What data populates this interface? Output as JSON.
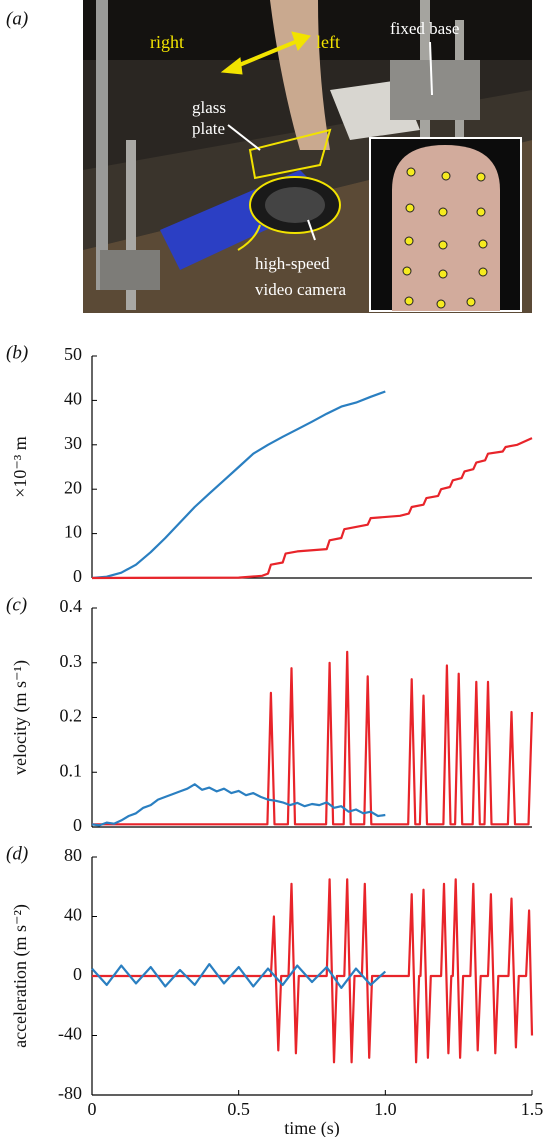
{
  "photo": {
    "label": "(a)",
    "right": "right",
    "left": "left",
    "fixed_base": "fixed base",
    "glass": "glass",
    "plate": "plate",
    "camera_1": "high-speed",
    "camera_2": "video camera"
  },
  "chart_data": [
    {
      "type": "line",
      "label": "(b)",
      "ylabel": "×10⁻³ m",
      "xlim": [
        0,
        1.5
      ],
      "ylim": [
        0,
        50
      ],
      "yticks": [
        0,
        10,
        20,
        30,
        40,
        50
      ],
      "series": [
        {
          "color": "#2a7fc1",
          "x": [
            0,
            0.05,
            0.1,
            0.15,
            0.2,
            0.25,
            0.3,
            0.35,
            0.4,
            0.45,
            0.5,
            0.55,
            0.6,
            0.65,
            0.7,
            0.75,
            0.8,
            0.85,
            0.9,
            0.95,
            1.0
          ],
          "values": [
            0,
            0.3,
            1.2,
            3,
            5.8,
            9,
            12.5,
            16,
            19,
            22,
            25,
            28,
            30,
            31.8,
            33.5,
            35.2,
            37,
            38.6,
            39.5,
            40.8,
            42
          ]
        },
        {
          "color": "#e8242a",
          "x": [
            0,
            0.5,
            0.58,
            0.6,
            0.61,
            0.65,
            0.66,
            0.7,
            0.8,
            0.81,
            0.85,
            0.86,
            0.9,
            0.94,
            0.95,
            1.05,
            1.08,
            1.09,
            1.13,
            1.14,
            1.18,
            1.19,
            1.22,
            1.23,
            1.26,
            1.27,
            1.3,
            1.31,
            1.34,
            1.35,
            1.4,
            1.41,
            1.45,
            1.5
          ],
          "values": [
            0,
            0.1,
            0.5,
            1,
            3,
            3.5,
            5.5,
            6,
            6.5,
            8.5,
            9,
            11,
            11.5,
            12,
            13.5,
            14,
            14.5,
            16,
            16.5,
            18,
            18.5,
            20,
            20.5,
            22,
            22.5,
            24,
            24.5,
            26,
            26.5,
            28,
            28.5,
            29.5,
            30,
            31.5
          ]
        }
      ]
    },
    {
      "type": "line",
      "label": "(c)",
      "ylabel": "velocity (m s⁻¹)",
      "xlim": [
        0,
        1.5
      ],
      "ylim": [
        0,
        0.4
      ],
      "yticks": [
        0,
        0.1,
        0.2,
        0.3,
        0.4
      ],
      "series": [
        {
          "color": "#e8242a",
          "x": [
            0,
            0.598,
            0.61,
            0.622,
            0.668,
            0.68,
            0.692,
            0.798,
            0.81,
            0.822,
            0.858,
            0.87,
            0.882,
            0.928,
            0.94,
            0.952,
            1.078,
            1.09,
            1.102,
            1.118,
            1.13,
            1.142,
            1.198,
            1.21,
            1.222,
            1.238,
            1.25,
            1.262,
            1.298,
            1.31,
            1.322,
            1.338,
            1.35,
            1.362,
            1.418,
            1.43,
            1.442,
            1.488,
            1.5
          ],
          "values": [
            0.005,
            0.005,
            0.245,
            0.005,
            0.005,
            0.29,
            0.005,
            0.005,
            0.3,
            0.005,
            0.005,
            0.32,
            0.005,
            0.005,
            0.275,
            0.005,
            0.005,
            0.27,
            0.005,
            0.005,
            0.24,
            0.005,
            0.005,
            0.295,
            0.005,
            0.005,
            0.28,
            0.005,
            0.005,
            0.265,
            0.005,
            0.005,
            0.265,
            0.005,
            0.005,
            0.21,
            0.005,
            0.005,
            0.21
          ]
        },
        {
          "color": "#2a7fc1",
          "x": [
            0,
            0.025,
            0.05,
            0.075,
            0.1,
            0.125,
            0.15,
            0.175,
            0.2,
            0.225,
            0.25,
            0.275,
            0.3,
            0.325,
            0.35,
            0.375,
            0.4,
            0.425,
            0.45,
            0.475,
            0.5,
            0.525,
            0.55,
            0.575,
            0.6,
            0.625,
            0.65,
            0.675,
            0.7,
            0.725,
            0.75,
            0.775,
            0.8,
            0.825,
            0.85,
            0.875,
            0.9,
            0.925,
            0.95,
            0.975,
            1
          ],
          "values": [
            0.005,
            0.003,
            0.008,
            0.006,
            0.012,
            0.02,
            0.025,
            0.035,
            0.04,
            0.05,
            0.055,
            0.06,
            0.065,
            0.07,
            0.078,
            0.068,
            0.072,
            0.065,
            0.07,
            0.062,
            0.066,
            0.058,
            0.062,
            0.055,
            0.05,
            0.048,
            0.045,
            0.04,
            0.044,
            0.038,
            0.042,
            0.04,
            0.045,
            0.035,
            0.038,
            0.028,
            0.032,
            0.025,
            0.028,
            0.02,
            0.022
          ]
        }
      ]
    },
    {
      "type": "line",
      "label": "(d)",
      "ylabel": "acceleration (m s⁻²)",
      "xlabel": "time (s)",
      "xlim": [
        0,
        1.5
      ],
      "ylim": [
        -80,
        80
      ],
      "yticks": [
        -80,
        -40,
        0,
        40,
        80
      ],
      "xticks": [
        0,
        0.5,
        {
          "value": 1,
          "label": "1.0"
        },
        1.5
      ],
      "series": [
        {
          "color": "#e8242a",
          "x": [
            0,
            0.6,
            0.61,
            0.62,
            0.635,
            0.645,
            0.67,
            0.68,
            0.695,
            0.705,
            0.8,
            0.81,
            0.825,
            0.835,
            0.86,
            0.87,
            0.885,
            0.895,
            0.92,
            0.93,
            0.945,
            0.955,
            1.08,
            1.09,
            1.105,
            1.115,
            1.12,
            1.13,
            1.145,
            1.155,
            1.19,
            1.2,
            1.215,
            1.225,
            1.23,
            1.24,
            1.255,
            1.265,
            1.29,
            1.3,
            1.315,
            1.325,
            1.35,
            1.36,
            1.375,
            1.385,
            1.42,
            1.43,
            1.445,
            1.455,
            1.48,
            1.49,
            1.5
          ],
          "values": [
            0,
            0,
            0,
            40,
            -50,
            0,
            0,
            62,
            -52,
            0,
            0,
            65,
            -58,
            0,
            0,
            65,
            -58,
            0,
            0,
            62,
            -55,
            0,
            0,
            55,
            -58,
            0,
            0,
            58,
            -55,
            0,
            0,
            62,
            -52,
            0,
            0,
            65,
            -55,
            0,
            0,
            62,
            -50,
            0,
            0,
            55,
            -52,
            0,
            0,
            52,
            -48,
            0,
            0,
            44,
            -40
          ]
        },
        {
          "color": "#2a7fc1",
          "x": [
            0,
            0.05,
            0.1,
            0.15,
            0.2,
            0.25,
            0.3,
            0.35,
            0.4,
            0.45,
            0.5,
            0.55,
            0.6,
            0.65,
            0.7,
            0.75,
            0.8,
            0.85,
            0.9,
            0.95,
            1.0
          ],
          "values": [
            5,
            -6,
            7,
            -5,
            6,
            -7,
            4,
            -6,
            8,
            -5,
            6,
            -7,
            5,
            -6,
            7,
            -4,
            6,
            -8,
            5,
            -6,
            3
          ]
        }
      ]
    }
  ]
}
